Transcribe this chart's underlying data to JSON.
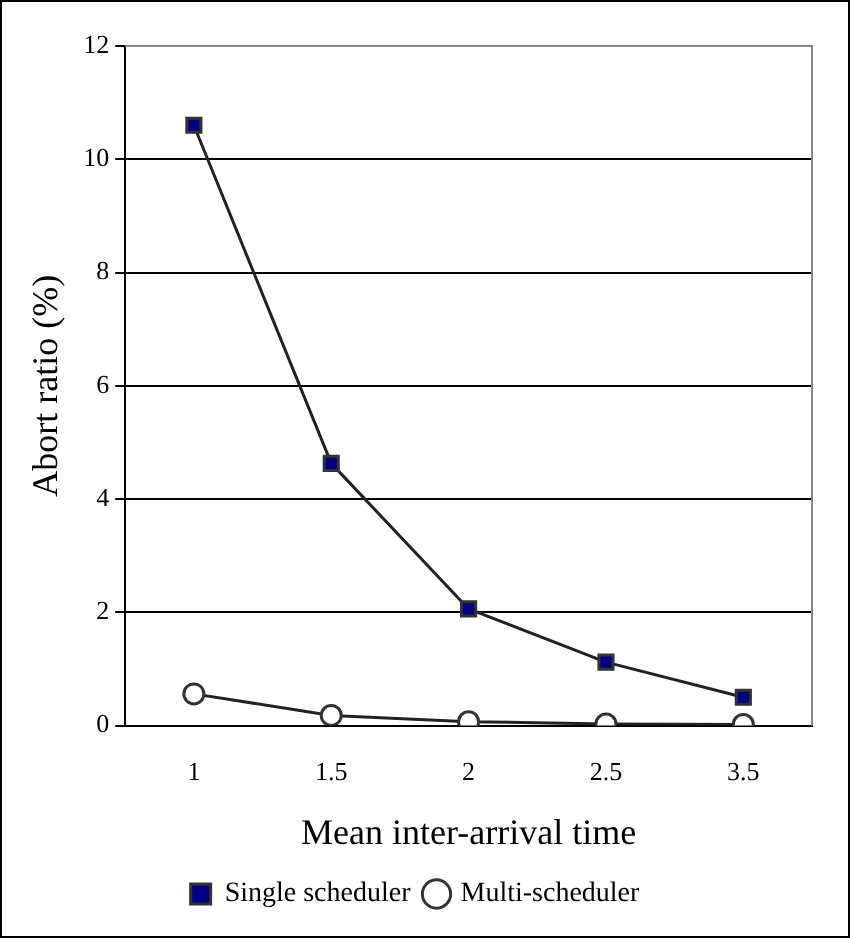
{
  "chart_data": {
    "type": "line",
    "xlabel": "Mean inter-arrival time",
    "ylabel": "Abort ratio (%)",
    "categories": [
      "1",
      "1.5",
      "2",
      "2.5",
      "3.5"
    ],
    "series": [
      {
        "name": "Single scheduler",
        "color": "#000080",
        "marker": "square",
        "values": [
          10.6,
          4.63,
          2.06,
          1.12,
          0.5
        ]
      },
      {
        "name": "Multi-scheduler",
        "color": "#ffffff",
        "marker": "circle",
        "values": [
          0.56,
          0.18,
          0.07,
          0.03,
          0.02
        ]
      }
    ],
    "ylim": [
      0,
      12
    ],
    "yticks": [
      0,
      2,
      4,
      6,
      8,
      10,
      12
    ],
    "grid": "y",
    "legend": "bottom",
    "line_style": "solid"
  }
}
